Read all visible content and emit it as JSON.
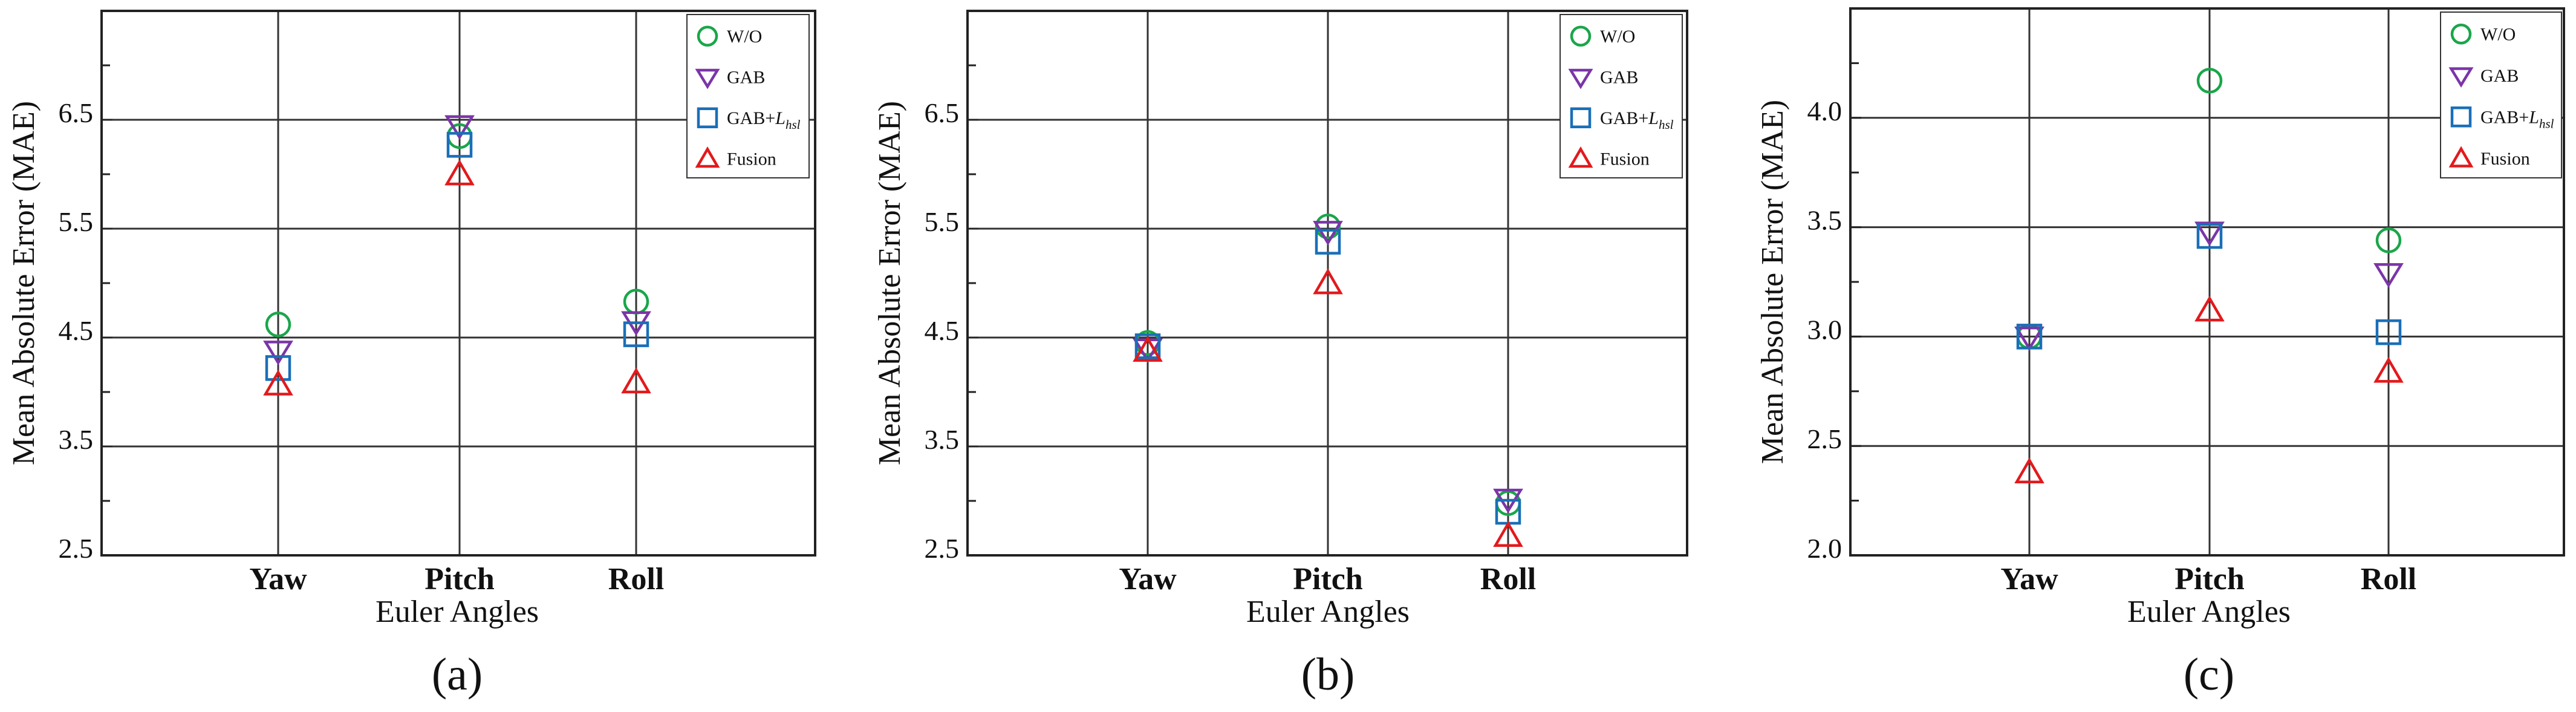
{
  "colors": {
    "W/O": "#1aa64a",
    "GAB": "#7b35a8",
    "GAB+L_hsl": "#1a6fb8",
    "Fusion": "#e3191c"
  },
  "chart_data": [
    {
      "type": "scatter",
      "panel_label": "(a)",
      "categories": [
        "Yaw",
        "Pitch",
        "Roll"
      ],
      "xlabel": "Euler Angles",
      "ylabel": "Mean Absolute Error (MAE)",
      "ylim": [
        2.5,
        7.5
      ],
      "yticks": [
        "2.5",
        "3.5",
        "4.5",
        "5.5",
        "6.5"
      ],
      "grid": true,
      "legend_position": "top-right",
      "series": [
        {
          "name": "W/O",
          "marker": "circle",
          "values": [
            4.62,
            6.35,
            4.83
          ]
        },
        {
          "name": "GAB",
          "marker": "triangle-down",
          "values": [
            4.38,
            6.45,
            4.65
          ]
        },
        {
          "name": "GAB+L_hsl",
          "marker": "square",
          "values": [
            4.22,
            6.27,
            4.53
          ]
        },
        {
          "name": "Fusion",
          "marker": "triangle-up",
          "values": [
            4.07,
            6.0,
            4.09
          ]
        }
      ]
    },
    {
      "type": "scatter",
      "panel_label": "(b)",
      "categories": [
        "Yaw",
        "Pitch",
        "Roll"
      ],
      "xlabel": "Euler Angles",
      "ylabel": "Mean Absolute Error (MAE)",
      "ylim": [
        2.5,
        7.5
      ],
      "yticks": [
        "2.5",
        "3.5",
        "4.5",
        "5.5",
        "6.5"
      ],
      "grid": true,
      "legend_position": "top-right",
      "series": [
        {
          "name": "W/O",
          "marker": "circle",
          "values": [
            4.45,
            5.52,
            2.98
          ]
        },
        {
          "name": "GAB",
          "marker": "triangle-down",
          "values": [
            4.4,
            5.48,
            3.02
          ]
        },
        {
          "name": "GAB+L_hsl",
          "marker": "square",
          "values": [
            4.42,
            5.38,
            2.9
          ]
        },
        {
          "name": "Fusion",
          "marker": "triangle-up",
          "values": [
            4.38,
            5.0,
            2.68
          ]
        }
      ]
    },
    {
      "type": "scatter",
      "panel_label": "(c)",
      "categories": [
        "Yaw",
        "Pitch",
        "Roll"
      ],
      "xlabel": "Euler Angles",
      "ylabel": "Mean Absolute Error (MAE)",
      "ylim": [
        2.0,
        4.5
      ],
      "yticks": [
        "2.0",
        "2.5",
        "3.0",
        "3.5",
        "4.0"
      ],
      "grid": true,
      "legend_position": "top-right",
      "series": [
        {
          "name": "W/O",
          "marker": "circle",
          "values": [
            3.0,
            4.17,
            3.44
          ]
        },
        {
          "name": "GAB",
          "marker": "triangle-down",
          "values": [
            3.0,
            3.48,
            3.29
          ]
        },
        {
          "name": "GAB+L_hsl",
          "marker": "square",
          "values": [
            3.0,
            3.46,
            3.02
          ]
        },
        {
          "name": "Fusion",
          "marker": "triangle-up",
          "values": [
            2.38,
            3.12,
            2.84
          ]
        }
      ]
    }
  ]
}
